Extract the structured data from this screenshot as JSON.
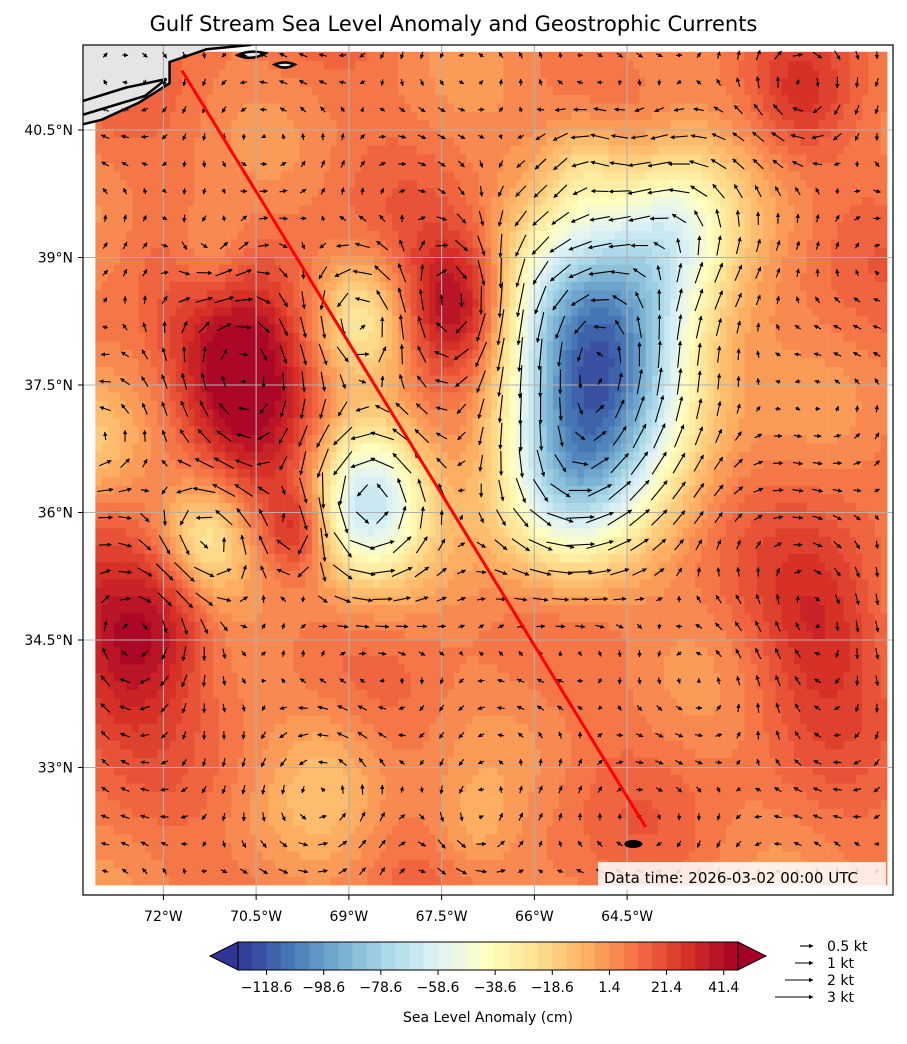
{
  "title": "Gulf Stream Sea Level Anomaly and Geostrophic Currents",
  "data_time": "Data time: 2026-03-02 00:00 UTC",
  "colors": {
    "track": "#ff0000",
    "land": "#e5e5e5",
    "coast": "#000000",
    "grid": "#b0b0b0"
  },
  "chart_data": {
    "type": "heatmap",
    "variable": "Sea Level Anomaly",
    "units": "cm",
    "colormap": "RdYlBu_r",
    "extend": "both",
    "lon_range": [
      -73.3,
      -60.2
    ],
    "lat_range": [
      31.5,
      41.5
    ],
    "xticks": [
      {
        "value": -72,
        "label": "72°W"
      },
      {
        "value": -70.5,
        "label": "70.5°W"
      },
      {
        "value": -69,
        "label": "69°W"
      },
      {
        "value": -67.5,
        "label": "67.5°W"
      },
      {
        "value": -66,
        "label": "66°W"
      },
      {
        "value": -64.5,
        "label": "64.5°W"
      }
    ],
    "yticks": [
      {
        "value": 33,
        "label": "33°N"
      },
      {
        "value": 34.5,
        "label": "34.5°N"
      },
      {
        "value": 36,
        "label": "36°N"
      },
      {
        "value": 37.5,
        "label": "37.5°N"
      },
      {
        "value": 39,
        "label": "39°N"
      },
      {
        "value": 40.5,
        "label": "40.5°N"
      }
    ],
    "grid": true,
    "background_ssh": 8,
    "eddies": [
      {
        "lon": -70.7,
        "lat": 37.6,
        "amplitude": 45,
        "radius": 0.8,
        "kind": "warm"
      },
      {
        "lon": -67.2,
        "lat": 38.45,
        "amplitude": 42,
        "radius": 0.6,
        "kind": "warm"
      },
      {
        "lon": -64.9,
        "lat": 37.9,
        "amplitude": -122,
        "radius": 1.1,
        "kind": "cold"
      },
      {
        "lon": -65.5,
        "lat": 36.3,
        "amplitude": -55,
        "radius": 0.8,
        "kind": "cold"
      },
      {
        "lon": -63.7,
        "lat": 39.4,
        "amplitude": -40,
        "radius": 0.7,
        "kind": "cold"
      },
      {
        "lon": -68.7,
        "lat": 36.15,
        "amplitude": -75,
        "radius": 0.65,
        "kind": "cold"
      },
      {
        "lon": -71.3,
        "lat": 35.7,
        "amplitude": -38,
        "radius": 0.5,
        "kind": "cold"
      },
      {
        "lon": -68.8,
        "lat": 38.3,
        "amplitude": -30,
        "radius": 0.5,
        "kind": "cold"
      },
      {
        "lon": -69.3,
        "lat": 33.0,
        "amplitude": -16,
        "radius": 0.7,
        "kind": "cold"
      },
      {
        "lon": -67.0,
        "lat": 32.2,
        "amplitude": -14,
        "radius": 0.5,
        "kind": "cold"
      },
      {
        "lon": -72.7,
        "lat": 34.4,
        "amplitude": 28,
        "radius": 0.7,
        "kind": "warm"
      },
      {
        "lon": -69.8,
        "lat": 35.8,
        "amplitude": 24,
        "radius": 0.35,
        "kind": "warm"
      },
      {
        "lon": -61.3,
        "lat": 34.7,
        "amplitude": 24,
        "radius": 0.8,
        "kind": "warm"
      },
      {
        "lon": -71.8,
        "lat": 34.8,
        "amplitude": 20,
        "radius": 0.6,
        "kind": "warm"
      },
      {
        "lon": -65.2,
        "lat": 40.1,
        "amplitude": -20,
        "radius": 0.45,
        "kind": "cold"
      },
      {
        "lon": -71.2,
        "lat": 39.0,
        "amplitude": -18,
        "radius": 0.45,
        "kind": "cold"
      },
      {
        "lon": -61.7,
        "lat": 40.9,
        "amplitude": 14,
        "radius": 0.5,
        "kind": "warm"
      },
      {
        "lon": -73.2,
        "lat": 36.8,
        "amplitude": -20,
        "radius": 0.5,
        "kind": "cold"
      }
    ],
    "quiver_spacing_deg": 0.32,
    "track": [
      [
        -71.7,
        41.2
      ],
      [
        -64.2,
        32.3
      ]
    ],
    "track_end_marker": [
      -64.4,
      32.1
    ],
    "colorbar": {
      "min": -128.6,
      "max": 46.4,
      "ticks": [
        -118.6,
        -98.6,
        -78.6,
        -58.6,
        -38.6,
        -18.6,
        1.4,
        21.4,
        41.4
      ],
      "tick_labels": [
        "−118.6",
        "−98.6",
        "−78.6",
        "−58.6",
        "−38.6",
        "−18.6",
        "1.4",
        "21.4",
        "41.4"
      ],
      "label": "Sea Level Anomaly (cm)"
    },
    "quiver_key": [
      {
        "speed": 0.5,
        "label": "0.5 kt"
      },
      {
        "speed": 1,
        "label": "1 kt"
      },
      {
        "speed": 2,
        "label": "2 kt"
      },
      {
        "speed": 3,
        "label": "3 kt"
      }
    ]
  }
}
